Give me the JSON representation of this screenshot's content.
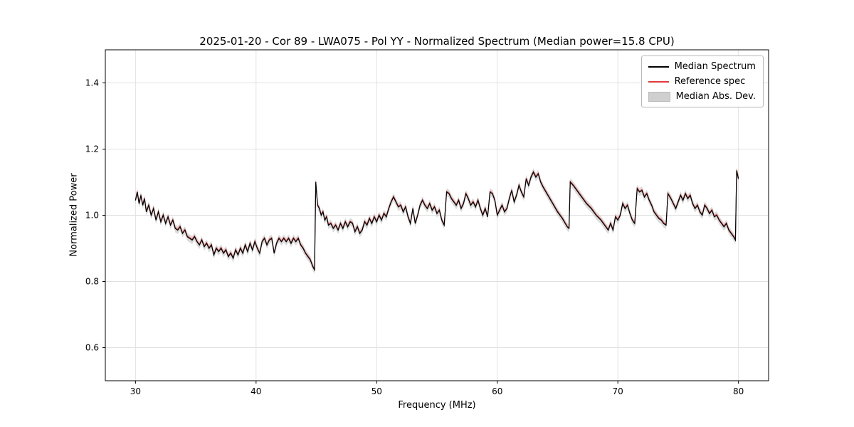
{
  "chart_data": {
    "type": "line",
    "title": "2025-01-20 - Cor 89 - LWA075 - Pol YY - Normalized Spectrum (Median power=15.8 CPU)",
    "xlabel": "Frequency (MHz)",
    "ylabel": "Normalized Power",
    "xlim": [
      27.5,
      82.5
    ],
    "ylim": [
      0.5,
      1.5
    ],
    "xticks": [
      30,
      40,
      50,
      60,
      70,
      80
    ],
    "yticks": [
      0.6,
      0.8,
      1.0,
      1.2,
      1.4
    ],
    "grid": true,
    "grid_color": "#e0e0e0",
    "spine_color": "#000000",
    "legend": {
      "position": "upper right",
      "entries": [
        {
          "label": "Median Spectrum",
          "color": "#000000",
          "type": "line"
        },
        {
          "label": "Reference spec",
          "color": "#e03a3a",
          "type": "line"
        },
        {
          "label": "Median Abs. Dev.",
          "color": "#cfcfcf",
          "type": "patch"
        }
      ]
    },
    "series": {
      "median": {
        "name": "Median Spectrum",
        "color": "#000000",
        "points": [
          [
            30.0,
            1.045
          ],
          [
            30.15,
            1.07
          ],
          [
            30.3,
            1.035
          ],
          [
            30.45,
            1.06
          ],
          [
            30.6,
            1.03
          ],
          [
            30.75,
            1.05
          ],
          [
            30.9,
            1.01
          ],
          [
            31.1,
            1.03
          ],
          [
            31.3,
            1.0
          ],
          [
            31.5,
            1.02
          ],
          [
            31.7,
            0.985
          ],
          [
            31.9,
            1.01
          ],
          [
            32.1,
            0.98
          ],
          [
            32.3,
            1.0
          ],
          [
            32.5,
            0.975
          ],
          [
            32.7,
            0.995
          ],
          [
            32.9,
            0.97
          ],
          [
            33.1,
            0.985
          ],
          [
            33.3,
            0.96
          ],
          [
            33.5,
            0.955
          ],
          [
            33.7,
            0.965
          ],
          [
            33.9,
            0.945
          ],
          [
            34.1,
            0.955
          ],
          [
            34.3,
            0.935
          ],
          [
            34.5,
            0.93
          ],
          [
            34.7,
            0.925
          ],
          [
            34.9,
            0.935
          ],
          [
            35.1,
            0.92
          ],
          [
            35.3,
            0.91
          ],
          [
            35.5,
            0.925
          ],
          [
            35.7,
            0.905
          ],
          [
            35.9,
            0.915
          ],
          [
            36.1,
            0.9
          ],
          [
            36.3,
            0.91
          ],
          [
            36.5,
            0.88
          ],
          [
            36.7,
            0.9
          ],
          [
            36.9,
            0.89
          ],
          [
            37.1,
            0.9
          ],
          [
            37.3,
            0.885
          ],
          [
            37.5,
            0.895
          ],
          [
            37.7,
            0.875
          ],
          [
            37.9,
            0.885
          ],
          [
            38.1,
            0.87
          ],
          [
            38.3,
            0.895
          ],
          [
            38.5,
            0.88
          ],
          [
            38.7,
            0.9
          ],
          [
            38.9,
            0.885
          ],
          [
            39.1,
            0.91
          ],
          [
            39.3,
            0.89
          ],
          [
            39.5,
            0.915
          ],
          [
            39.7,
            0.895
          ],
          [
            39.9,
            0.92
          ],
          [
            40.1,
            0.9
          ],
          [
            40.3,
            0.885
          ],
          [
            40.5,
            0.92
          ],
          [
            40.7,
            0.93
          ],
          [
            40.9,
            0.91
          ],
          [
            41.1,
            0.925
          ],
          [
            41.3,
            0.93
          ],
          [
            41.5,
            0.885
          ],
          [
            41.7,
            0.915
          ],
          [
            41.9,
            0.93
          ],
          [
            42.1,
            0.92
          ],
          [
            42.3,
            0.93
          ],
          [
            42.5,
            0.92
          ],
          [
            42.7,
            0.93
          ],
          [
            42.9,
            0.915
          ],
          [
            43.1,
            0.93
          ],
          [
            43.3,
            0.92
          ],
          [
            43.5,
            0.93
          ],
          [
            43.7,
            0.91
          ],
          [
            43.9,
            0.9
          ],
          [
            44.1,
            0.885
          ],
          [
            44.3,
            0.875
          ],
          [
            44.5,
            0.865
          ],
          [
            44.7,
            0.845
          ],
          [
            44.85,
            0.835
          ],
          [
            44.95,
            1.1
          ],
          [
            45.1,
            1.03
          ],
          [
            45.25,
            1.02
          ],
          [
            45.4,
            1.0
          ],
          [
            45.55,
            1.01
          ],
          [
            45.7,
            0.985
          ],
          [
            45.85,
            0.995
          ],
          [
            46.0,
            0.97
          ],
          [
            46.2,
            0.975
          ],
          [
            46.4,
            0.96
          ],
          [
            46.6,
            0.97
          ],
          [
            46.8,
            0.955
          ],
          [
            47.0,
            0.975
          ],
          [
            47.2,
            0.96
          ],
          [
            47.4,
            0.98
          ],
          [
            47.6,
            0.965
          ],
          [
            47.8,
            0.98
          ],
          [
            48.0,
            0.975
          ],
          [
            48.2,
            0.95
          ],
          [
            48.4,
            0.965
          ],
          [
            48.6,
            0.945
          ],
          [
            48.8,
            0.955
          ],
          [
            49.0,
            0.98
          ],
          [
            49.2,
            0.97
          ],
          [
            49.4,
            0.99
          ],
          [
            49.6,
            0.975
          ],
          [
            49.8,
            0.995
          ],
          [
            50.0,
            0.98
          ],
          [
            50.2,
            1.0
          ],
          [
            50.4,
            0.985
          ],
          [
            50.6,
            1.005
          ],
          [
            50.8,
            0.995
          ],
          [
            51.0,
            1.02
          ],
          [
            51.2,
            1.04
          ],
          [
            51.4,
            1.055
          ],
          [
            51.6,
            1.04
          ],
          [
            51.8,
            1.025
          ],
          [
            52.0,
            1.03
          ],
          [
            52.2,
            1.01
          ],
          [
            52.4,
            1.025
          ],
          [
            52.6,
            0.995
          ],
          [
            52.8,
            0.975
          ],
          [
            53.0,
            1.02
          ],
          [
            53.2,
            0.975
          ],
          [
            53.4,
            1.0
          ],
          [
            53.6,
            1.03
          ],
          [
            53.8,
            1.045
          ],
          [
            54.0,
            1.03
          ],
          [
            54.2,
            1.02
          ],
          [
            54.4,
            1.035
          ],
          [
            54.6,
            1.015
          ],
          [
            54.8,
            1.025
          ],
          [
            55.0,
            1.005
          ],
          [
            55.2,
            1.015
          ],
          [
            55.4,
            0.985
          ],
          [
            55.6,
            0.97
          ],
          [
            55.8,
            1.07
          ],
          [
            56.0,
            1.065
          ],
          [
            56.2,
            1.05
          ],
          [
            56.4,
            1.04
          ],
          [
            56.6,
            1.03
          ],
          [
            56.8,
            1.045
          ],
          [
            57.0,
            1.02
          ],
          [
            57.2,
            1.035
          ],
          [
            57.4,
            1.065
          ],
          [
            57.6,
            1.05
          ],
          [
            57.8,
            1.03
          ],
          [
            58.0,
            1.04
          ],
          [
            58.2,
            1.025
          ],
          [
            58.4,
            1.045
          ],
          [
            58.6,
            1.02
          ],
          [
            58.8,
            1.0
          ],
          [
            59.0,
            1.02
          ],
          [
            59.2,
            0.995
          ],
          [
            59.4,
            1.07
          ],
          [
            59.6,
            1.065
          ],
          [
            59.8,
            1.045
          ],
          [
            60.0,
            1.0
          ],
          [
            60.2,
            1.015
          ],
          [
            60.4,
            1.03
          ],
          [
            60.6,
            1.01
          ],
          [
            60.8,
            1.02
          ],
          [
            61.0,
            1.05
          ],
          [
            61.2,
            1.075
          ],
          [
            61.4,
            1.04
          ],
          [
            61.6,
            1.06
          ],
          [
            61.8,
            1.09
          ],
          [
            62.0,
            1.07
          ],
          [
            62.2,
            1.055
          ],
          [
            62.4,
            1.11
          ],
          [
            62.6,
            1.09
          ],
          [
            62.8,
            1.115
          ],
          [
            63.0,
            1.13
          ],
          [
            63.2,
            1.115
          ],
          [
            63.4,
            1.125
          ],
          [
            63.6,
            1.1
          ],
          [
            63.8,
            1.085
          ],
          [
            64.2,
            1.06
          ],
          [
            64.6,
            1.035
          ],
          [
            65.0,
            1.01
          ],
          [
            65.4,
            0.99
          ],
          [
            65.8,
            0.965
          ],
          [
            65.95,
            0.96
          ],
          [
            66.05,
            1.1
          ],
          [
            66.3,
            1.09
          ],
          [
            66.6,
            1.075
          ],
          [
            67.0,
            1.055
          ],
          [
            67.4,
            1.035
          ],
          [
            67.8,
            1.02
          ],
          [
            68.2,
            1.0
          ],
          [
            68.6,
            0.985
          ],
          [
            69.0,
            0.965
          ],
          [
            69.2,
            0.955
          ],
          [
            69.4,
            0.975
          ],
          [
            69.6,
            0.955
          ],
          [
            69.8,
            0.995
          ],
          [
            70.0,
            0.985
          ],
          [
            70.2,
            1.0
          ],
          [
            70.4,
            1.035
          ],
          [
            70.6,
            1.02
          ],
          [
            70.8,
            1.03
          ],
          [
            71.0,
            1.005
          ],
          [
            71.2,
            0.985
          ],
          [
            71.4,
            0.975
          ],
          [
            71.6,
            1.08
          ],
          [
            71.8,
            1.07
          ],
          [
            72.0,
            1.075
          ],
          [
            72.2,
            1.055
          ],
          [
            72.4,
            1.065
          ],
          [
            72.6,
            1.045
          ],
          [
            72.8,
            1.03
          ],
          [
            73.0,
            1.01
          ],
          [
            73.2,
            1.0
          ],
          [
            73.4,
            0.99
          ],
          [
            73.6,
            0.985
          ],
          [
            73.8,
            0.975
          ],
          [
            74.0,
            0.97
          ],
          [
            74.15,
            1.065
          ],
          [
            74.4,
            1.05
          ],
          [
            74.6,
            1.035
          ],
          [
            74.8,
            1.02
          ],
          [
            75.0,
            1.04
          ],
          [
            75.2,
            1.06
          ],
          [
            75.4,
            1.045
          ],
          [
            75.6,
            1.065
          ],
          [
            75.8,
            1.05
          ],
          [
            76.0,
            1.06
          ],
          [
            76.2,
            1.035
          ],
          [
            76.4,
            1.02
          ],
          [
            76.6,
            1.03
          ],
          [
            76.8,
            1.01
          ],
          [
            77.0,
            1.0
          ],
          [
            77.2,
            1.03
          ],
          [
            77.4,
            1.02
          ],
          [
            77.6,
            1.005
          ],
          [
            77.8,
            1.015
          ],
          [
            78.0,
            0.995
          ],
          [
            78.2,
            1.0
          ],
          [
            78.4,
            0.985
          ],
          [
            78.6,
            0.975
          ],
          [
            78.8,
            0.965
          ],
          [
            79.0,
            0.975
          ],
          [
            79.2,
            0.955
          ],
          [
            79.4,
            0.945
          ],
          [
            79.6,
            0.935
          ],
          [
            79.75,
            0.925
          ],
          [
            79.85,
            1.135
          ],
          [
            80.0,
            1.11
          ]
        ]
      },
      "reference": {
        "name": "Reference spec",
        "color": "#e03a3a",
        "offset": 0.003,
        "note": "nearly identical to median spectrum"
      },
      "mad_band": {
        "name": "Median Abs. Dev.",
        "color": "#c8c8c8",
        "halfwidth": 0.012
      }
    }
  }
}
